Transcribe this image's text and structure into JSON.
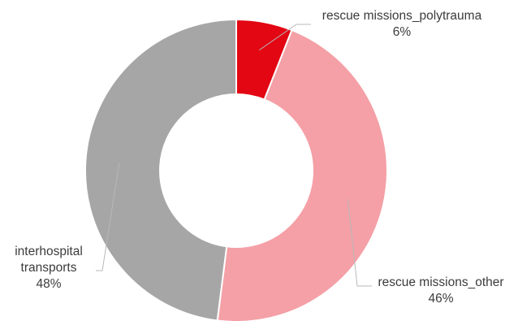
{
  "chart_data": {
    "type": "pie",
    "variant": "donut",
    "categories": [
      "rescue missions_polytrauma",
      "rescue missions_other",
      "interhospital transports"
    ],
    "values": [
      6,
      46,
      48
    ],
    "value_labels": [
      "6%",
      "46%",
      "48%"
    ],
    "label_lines": [
      [
        "rescue missions_polytrauma",
        "6%"
      ],
      [
        "rescue missions_other",
        "46%"
      ],
      [
        "interhospital",
        "transports",
        "48%"
      ]
    ],
    "colors": [
      "#e30613",
      "#f4a0a6",
      "#a6a6a6"
    ],
    "legend": "none",
    "data_labels": "outside with leader lines"
  }
}
